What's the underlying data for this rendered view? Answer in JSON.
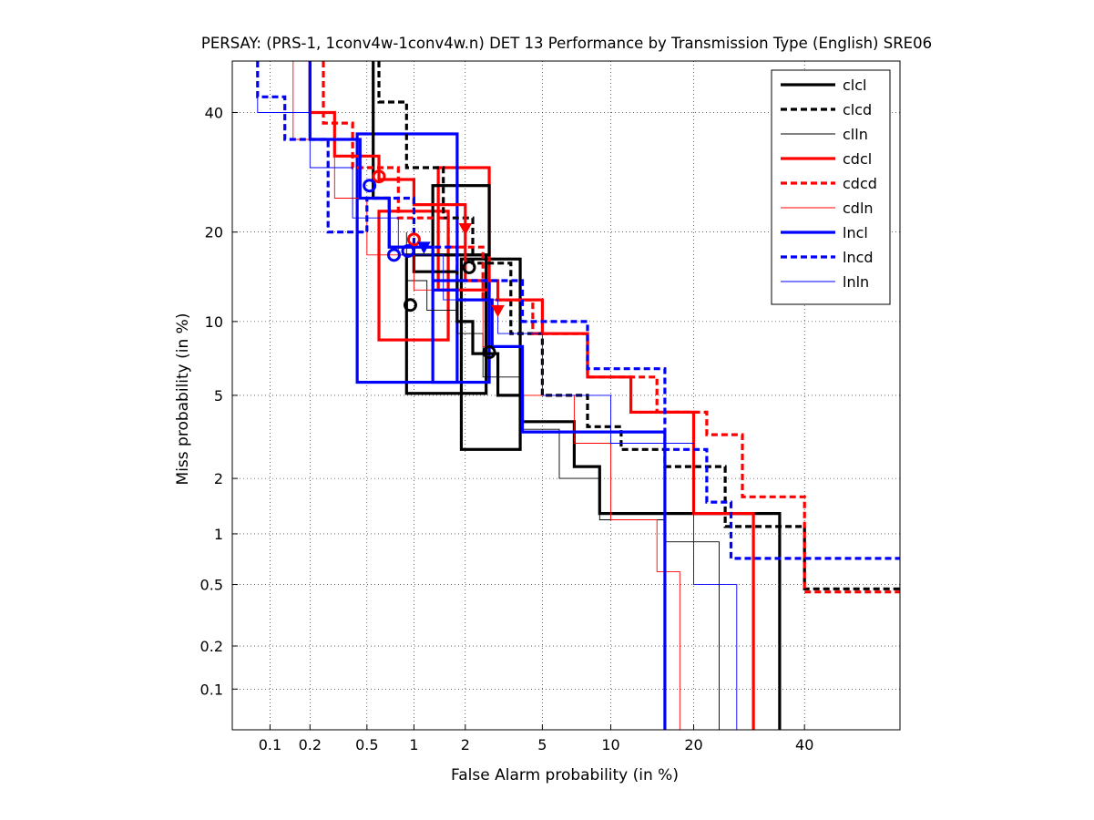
{
  "chart_data": {
    "type": "line",
    "title": "PERSAY: (PRS-1, 1conv4w-1conv4w.n) DET 13 Performance by Transmission Type (English) SRE06",
    "xlabel": "False Alarm probability (in %)",
    "ylabel": "Miss probability (in %)",
    "x_scale": "probit",
    "y_scale": "probit",
    "xlim": [
      0.05,
      60
    ],
    "ylim": [
      0.05,
      50
    ],
    "x_ticks": [
      "0.1",
      "0.2",
      "0.5",
      "1",
      "2",
      "5",
      "10",
      "20",
      "40"
    ],
    "y_ticks": [
      "0.1",
      "0.2",
      "0.5",
      "1",
      "2",
      "5",
      "10",
      "20",
      "40"
    ],
    "grid": true,
    "legend_position": "top-right",
    "series": [
      {
        "name": "clcl",
        "color": "#000000",
        "dash": "solid",
        "width": "thick",
        "x": [
          0.55,
          0.55,
          0.7,
          0.7,
          1.0,
          1.0,
          1.8,
          1.8,
          2.2,
          2.2,
          3.0,
          3.0,
          4.0,
          4.0,
          7.0,
          7.0,
          9.0,
          9.0,
          12.0,
          12.0,
          35.0,
          35.0
        ],
        "y": [
          50,
          25,
          25,
          18,
          18,
          15,
          15,
          10,
          10,
          7.5,
          7.5,
          5,
          5,
          3.8,
          3.8,
          2.3,
          2.3,
          1.3,
          1.3,
          1.3,
          1.3,
          0.05
        ]
      },
      {
        "name": "clcd",
        "color": "#000000",
        "dash": "dashed",
        "width": "thick",
        "x": [
          0.6,
          0.6,
          0.9,
          0.9,
          1.5,
          1.5,
          2.2,
          2.2,
          3.5,
          3.5,
          5.0,
          5.0,
          8.0,
          8.0,
          11.0,
          11.0,
          16.0,
          16.0,
          25.0,
          25.0,
          40.0,
          40.0,
          60.0
        ],
        "y": [
          50,
          42,
          42,
          30,
          30,
          22,
          22,
          16,
          16,
          9,
          9,
          5,
          5,
          3.6,
          3.6,
          2.8,
          2.8,
          2.3,
          2.3,
          1.1,
          1.1,
          0.47,
          0.47
        ]
      },
      {
        "name": "clln",
        "color": "#000000",
        "dash": "solid",
        "width": "thin",
        "x": [
          0.9,
          0.9,
          1.2,
          1.2,
          1.8,
          1.8,
          2.5,
          2.5,
          4.0,
          4.0,
          6.0,
          6.0,
          9.0,
          9.0,
          16.0,
          16.0,
          24.0,
          24.0
        ],
        "y": [
          20,
          14,
          14,
          11,
          11,
          9,
          9,
          6,
          6,
          3.5,
          3.5,
          2,
          2,
          1.2,
          1.2,
          0.9,
          0.9,
          0.05
        ]
      },
      {
        "name": "cdcl",
        "color": "#ff0000",
        "dash": "solid",
        "width": "thick",
        "x": [
          0.2,
          0.2,
          0.3,
          0.3,
          0.6,
          0.6,
          1.0,
          1.0,
          2.0,
          2.0,
          3.0,
          3.0,
          5.0,
          5.0,
          8.0,
          8.0,
          12.0,
          12.0,
          20.0,
          20.0,
          30.0,
          30.0
        ],
        "y": [
          50,
          40,
          40,
          32,
          32,
          28,
          28,
          24,
          24,
          14,
          14,
          12,
          12,
          9,
          9,
          6,
          6,
          4.2,
          4.2,
          1.3,
          1.3,
          0.05
        ]
      },
      {
        "name": "cdcd",
        "color": "#ff0000",
        "dash": "dashed",
        "width": "thick",
        "x": [
          0.25,
          0.25,
          0.4,
          0.4,
          0.8,
          0.8,
          1.6,
          1.6,
          2.5,
          2.5,
          4.5,
          4.5,
          8.0,
          8.0,
          15.0,
          15.0,
          22.0,
          22.0,
          28.0,
          28.0,
          40.0,
          40.0,
          60.0
        ],
        "y": [
          50,
          38,
          38,
          30,
          30,
          22,
          22,
          18,
          18,
          12,
          12,
          9,
          9,
          6,
          6,
          4.2,
          4.2,
          3.3,
          3.3,
          1.6,
          1.6,
          0.45,
          0.45
        ]
      },
      {
        "name": "cdln",
        "color": "#ff0000",
        "dash": "solid",
        "width": "thin",
        "x": [
          0.15,
          0.15,
          0.3,
          0.3,
          0.5,
          0.5,
          1.0,
          1.0,
          2.5,
          2.5,
          4.0,
          4.0,
          7.0,
          7.0,
          10.0,
          10.0,
          15.0,
          15.0,
          18.0,
          18.0
        ],
        "y": [
          50,
          35,
          35,
          25,
          25,
          17,
          17,
          13,
          13,
          8,
          8,
          5,
          5,
          3,
          3,
          1.2,
          1.2,
          0.6,
          0.6,
          0.05
        ]
      },
      {
        "name": "lncl",
        "color": "#0000ff",
        "dash": "solid",
        "width": "thick",
        "x": [
          0.2,
          0.2,
          0.45,
          0.45,
          0.7,
          0.7,
          1.3,
          1.3,
          1.8,
          1.8,
          2.8,
          2.8,
          4.0,
          4.0,
          16.0,
          16.0
        ],
        "y": [
          50,
          35,
          35,
          25,
          25,
          18,
          18,
          13,
          13,
          12,
          12,
          8,
          8,
          3.4,
          3.4,
          0.05
        ]
      },
      {
        "name": "lncd",
        "color": "#0000ff",
        "dash": "dashed",
        "width": "thick",
        "x": [
          0.08,
          0.08,
          0.13,
          0.13,
          0.27,
          0.27,
          0.5,
          0.5,
          1.0,
          1.0,
          1.8,
          1.8,
          4.0,
          4.0,
          8.0,
          8.0,
          16.0,
          16.0,
          22.0,
          22.0,
          26.0,
          26.0,
          60.0
        ],
        "y": [
          50,
          43,
          43,
          35,
          35,
          20,
          20,
          25,
          25,
          18,
          18,
          14,
          14,
          10,
          10,
          6.5,
          6.5,
          2.8,
          2.8,
          1.5,
          1.5,
          0.72,
          0.72
        ]
      },
      {
        "name": "lnln",
        "color": "#0000ff",
        "dash": "solid",
        "width": "thin",
        "x": [
          0.08,
          0.08,
          0.2,
          0.2,
          0.4,
          0.4,
          0.8,
          0.8,
          1.5,
          1.5,
          3.0,
          3.0,
          5.0,
          5.0,
          10.0,
          10.0,
          20.0,
          20.0,
          27.0,
          27.0
        ],
        "y": [
          43,
          40,
          40,
          30,
          30,
          22,
          22,
          17,
          17,
          12,
          12,
          9,
          9,
          5,
          5,
          3,
          3,
          0.5,
          0.5,
          0.05
        ]
      }
    ],
    "markers": [
      {
        "series": "clcl",
        "shape": "circle",
        "x": 0.95,
        "y": 11.5,
        "color": "#000000"
      },
      {
        "series": "clcl",
        "shape": "circle",
        "x": 2.1,
        "y": 15.5,
        "color": "#000000"
      },
      {
        "series": "clcl",
        "shape": "circle",
        "x": 2.7,
        "y": 7.6,
        "color": "#000000"
      },
      {
        "series": "cdcl",
        "shape": "circle",
        "x": 0.6,
        "y": 28.5,
        "color": "#ff0000"
      },
      {
        "series": "cdcl",
        "shape": "circle",
        "x": 1.0,
        "y": 19,
        "color": "#ff0000"
      },
      {
        "series": "cdcl",
        "shape": "triangle",
        "x": 3.0,
        "y": 11,
        "color": "#ff0000"
      },
      {
        "series": "cdcd",
        "shape": "triangle",
        "x": 2.0,
        "y": 20.5,
        "color": "#ff0000"
      },
      {
        "series": "lncl",
        "shape": "circle",
        "x": 0.52,
        "y": 27,
        "color": "#0000ff"
      },
      {
        "series": "lncl",
        "shape": "circle",
        "x": 0.75,
        "y": 17,
        "color": "#0000ff"
      },
      {
        "series": "lncl",
        "shape": "circle",
        "x": 0.92,
        "y": 17.5,
        "color": "#0000ff"
      },
      {
        "series": "lncd",
        "shape": "triangle",
        "x": 1.15,
        "y": 18,
        "color": "#0000ff"
      }
    ],
    "confidence_boxes": [
      {
        "series": "clcl",
        "x": [
          0.9,
          2.6
        ],
        "y": [
          5.1,
          17
        ],
        "color": "#000000"
      },
      {
        "series": "clcl",
        "x": [
          1.9,
          3.9
        ],
        "y": [
          2.8,
          16.5
        ],
        "color": "#000000"
      },
      {
        "series": "cdcl",
        "x": [
          0.6,
          1.6
        ],
        "y": [
          8.5,
          23
        ],
        "color": "#ff0000"
      },
      {
        "series": "cdcl",
        "x": [
          1.4,
          2.7
        ],
        "y": [
          13,
          30
        ],
        "color": "#ff0000"
      },
      {
        "series": "clcd",
        "x": [
          1.3,
          2.7
        ],
        "y": [
          17,
          27
        ],
        "color": "#000000"
      },
      {
        "series": "lncl",
        "x": [
          0.43,
          1.8
        ],
        "y": [
          5.7,
          36
        ],
        "color": "#0000ff"
      },
      {
        "series": "lncl",
        "x": [
          1.3,
          2.7
        ],
        "y": [
          5.7,
          14
        ],
        "color": "#0000ff"
      }
    ]
  }
}
